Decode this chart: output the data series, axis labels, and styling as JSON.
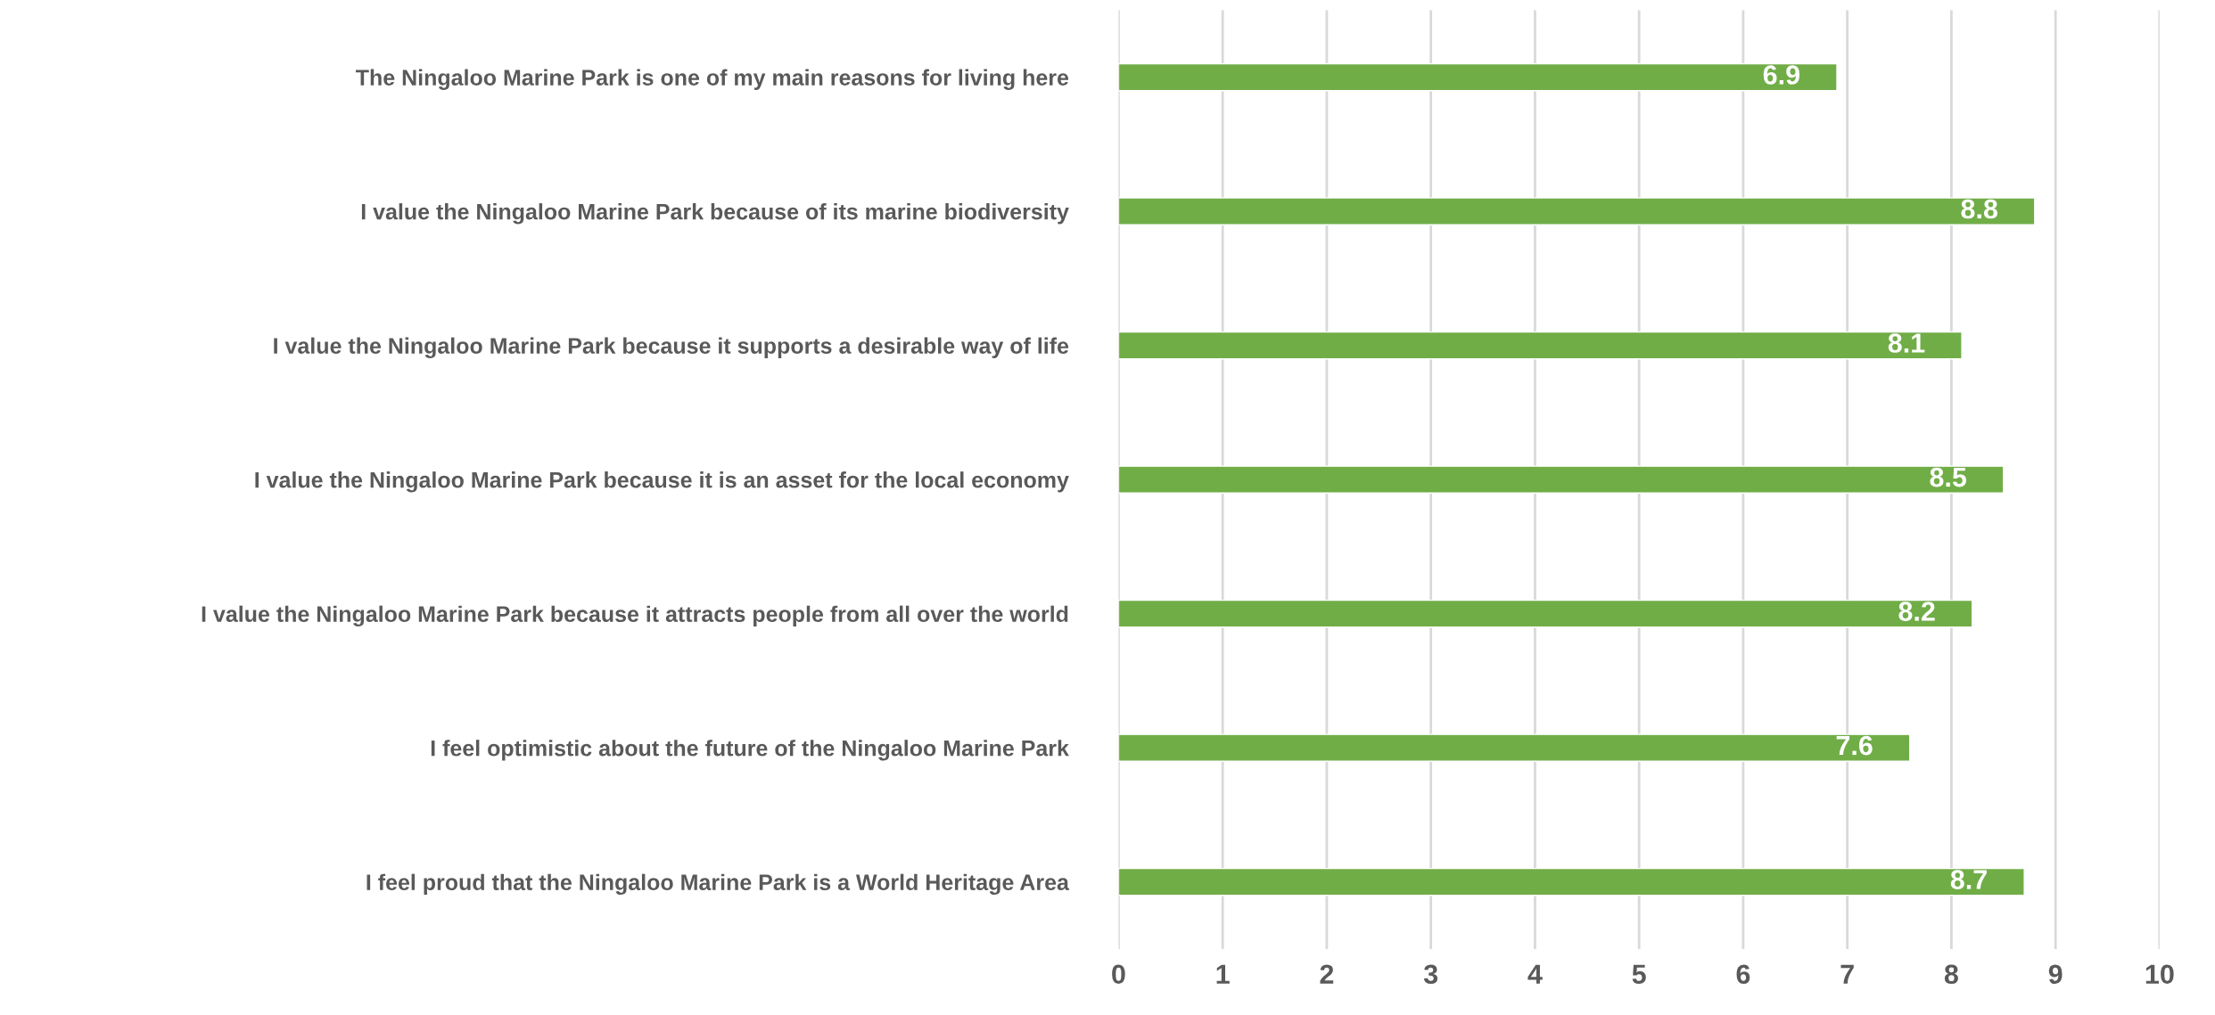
{
  "chart_data": {
    "type": "bar",
    "orientation": "horizontal",
    "categories": [
      "The Ningaloo Marine Park is one of my main reasons for living here",
      "I value the Ningaloo Marine Park because of its marine biodiversity",
      "I value the Ningaloo Marine Park because it supports a desirable way of life",
      "I value the Ningaloo Marine Park because it is an asset for the local economy",
      "I value the Ningaloo Marine Park because it attracts people from all over the world",
      "I feel optimistic about the future of the Ningaloo Marine Park",
      "I feel proud that the Ningaloo Marine Park is a World Heritage Area"
    ],
    "values": [
      6.9,
      8.8,
      8.1,
      8.5,
      8.2,
      7.6,
      8.7
    ],
    "color": "#70ad47",
    "xlim": [
      0,
      10
    ],
    "xticks": [
      0,
      1,
      2,
      3,
      4,
      5,
      6,
      7,
      8,
      9,
      10
    ],
    "grid": "x",
    "data_labels": true
  }
}
